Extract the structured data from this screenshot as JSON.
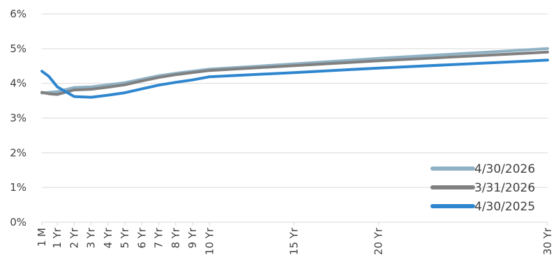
{
  "chart_data": {
    "type": "line",
    "ylim": [
      0,
      6
    ],
    "yticks": [
      "0%",
      "1%",
      "2%",
      "3%",
      "4%",
      "5%",
      "6%"
    ],
    "grid": true,
    "legend_position": "bottom-right",
    "x_tick_labels": [
      {
        "x": 0.0833,
        "label": "1 M"
      },
      {
        "x": 1,
        "label": "1 Yr"
      },
      {
        "x": 2,
        "label": "2 Yr"
      },
      {
        "x": 3,
        "label": "3 Yr"
      },
      {
        "x": 4,
        "label": "4 Yr"
      },
      {
        "x": 5,
        "label": "5 Yr"
      },
      {
        "x": 6,
        "label": "6 Yr"
      },
      {
        "x": 7,
        "label": "7 Yr"
      },
      {
        "x": 8,
        "label": "8 Yr"
      },
      {
        "x": 9,
        "label": "9 Yr"
      },
      {
        "x": 10,
        "label": "10 Yr"
      },
      {
        "x": 15,
        "label": "15 Yr"
      },
      {
        "x": 20,
        "label": "20 Yr"
      },
      {
        "x": 30,
        "label": "30 Yr"
      }
    ],
    "xlim": [
      0.0833,
      30
    ],
    "series": [
      {
        "name": "4/30/2026",
        "color": "#8fb1c4",
        "points": [
          [
            0.0833,
            3.72
          ],
          [
            0.5,
            3.74
          ],
          [
            1,
            3.76
          ],
          [
            2,
            3.88
          ],
          [
            3,
            3.9
          ],
          [
            4,
            3.96
          ],
          [
            5,
            4.02
          ],
          [
            6,
            4.12
          ],
          [
            7,
            4.22
          ],
          [
            8,
            4.29
          ],
          [
            9,
            4.35
          ],
          [
            10,
            4.41
          ],
          [
            15,
            4.56
          ],
          [
            20,
            4.72
          ],
          [
            30,
            5.0
          ]
        ]
      },
      {
        "name": "3/31/2026",
        "color": "#808080",
        "points": [
          [
            0.0833,
            3.74
          ],
          [
            0.5,
            3.7
          ],
          [
            1,
            3.68
          ],
          [
            2,
            3.81
          ],
          [
            3,
            3.83
          ],
          [
            4,
            3.89
          ],
          [
            5,
            3.96
          ],
          [
            6,
            4.07
          ],
          [
            7,
            4.17
          ],
          [
            8,
            4.25
          ],
          [
            9,
            4.31
          ],
          [
            10,
            4.37
          ],
          [
            15,
            4.51
          ],
          [
            20,
            4.65
          ],
          [
            30,
            4.9
          ]
        ]
      },
      {
        "name": "4/30/2025",
        "color": "#2e86cf",
        "points": [
          [
            0.0833,
            4.35
          ],
          [
            0.5,
            4.2
          ],
          [
            1,
            3.9
          ],
          [
            2,
            3.62
          ],
          [
            3,
            3.6
          ],
          [
            4,
            3.66
          ],
          [
            5,
            3.73
          ],
          [
            6,
            3.84
          ],
          [
            7,
            3.95
          ],
          [
            8,
            4.03
          ],
          [
            9,
            4.1
          ],
          [
            10,
            4.19
          ],
          [
            15,
            4.31
          ],
          [
            20,
            4.44
          ],
          [
            30,
            4.67
          ]
        ]
      }
    ]
  }
}
